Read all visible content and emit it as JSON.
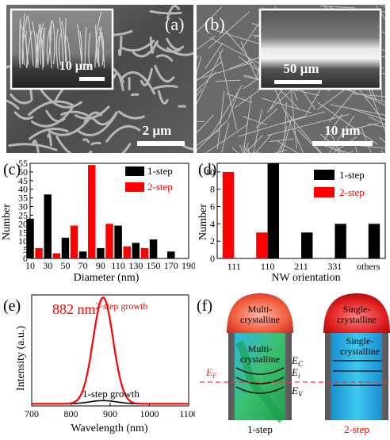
{
  "panel_a": {
    "label": "(a)",
    "inset_scale": "10 µm",
    "main_scale": "2 µm"
  },
  "panel_b": {
    "label": "(b)",
    "inset_scale": "50 µm",
    "main_scale": "10 µm"
  },
  "panel_e": {
    "label": "(e)",
    "peak_label": "882 nm",
    "annot_2step": "2-step growth",
    "annot_1step": "1-step growth",
    "colors": {
      "two_step": "#ff0000",
      "one_step": "#000000"
    }
  },
  "panel_f": {
    "label": "(f)",
    "left_cap": [
      "Multi-",
      "crystalline"
    ],
    "left_body": [
      "Multi-",
      "crystalline"
    ],
    "right_cap": [
      "Single-",
      "crystalline"
    ],
    "right_body": [
      "Single-",
      "crystalline"
    ],
    "ef": "E",
    "ef_sub": "F",
    "ec": "E",
    "ec_sub": "C",
    "ei": "E",
    "ei_sub": "i",
    "ev": "E",
    "ev_sub": "V",
    "left_caption": "1-step",
    "right_caption": "2-step"
  },
  "chart_data": [
    {
      "label": "(c)",
      "type": "bar",
      "xlabel": "Diameter (nm)",
      "ylabel": "Number",
      "categories": [
        "10",
        "30",
        "50",
        "70",
        "90",
        "110",
        "130",
        "150",
        "170",
        "190"
      ],
      "ylim": [
        0,
        55
      ],
      "yticks": [
        0,
        5,
        10,
        15,
        20,
        25,
        30,
        35,
        40,
        45,
        50,
        55
      ],
      "legend_position": "top-right",
      "series": [
        {
          "name": "1-step",
          "color": "#000000",
          "points": [
            [
              10,
              23
            ],
            [
              30,
              37
            ],
            [
              50,
              12
            ],
            [
              70,
              4
            ],
            [
              90,
              6
            ],
            [
              110,
              19
            ],
            [
              130,
              9
            ],
            [
              150,
              11
            ],
            [
              170,
              4
            ]
          ]
        },
        {
          "name": "2-step",
          "color": "#ff0000",
          "points": [
            [
              20,
              6
            ],
            [
              40,
              3
            ],
            [
              60,
              19
            ],
            [
              80,
              54
            ],
            [
              100,
              20
            ],
            [
              120,
              7
            ],
            [
              140,
              6
            ]
          ]
        }
      ]
    },
    {
      "label": "(d)",
      "type": "bar",
      "xlabel": "NW orientation",
      "ylabel": "Number",
      "categories": [
        "111",
        "110",
        "211",
        "331",
        "others"
      ],
      "ylim": [
        0,
        11
      ],
      "yticks": [
        0,
        2,
        4,
        6,
        8,
        10
      ],
      "legend_position": "top-right",
      "series": [
        {
          "name": "1-step",
          "color": "#000000",
          "values": [
            0,
            11,
            3,
            4,
            4
          ]
        },
        {
          "name": "2-step",
          "color": "#ff0000",
          "values": [
            10,
            3,
            0,
            0,
            0
          ]
        }
      ]
    },
    {
      "label": "(e)",
      "type": "line",
      "xlabel": "Wavelength (nm)",
      "ylabel": "Intensity (a.u.)",
      "xlim": [
        700,
        1100
      ],
      "xticks": [
        700,
        800,
        900,
        1000,
        1100
      ],
      "series": [
        {
          "name": "2-step growth",
          "color": "#ff0000",
          "peak": 882,
          "fwhm": 60,
          "amplitude": 1.0,
          "baseline": 0.02
        },
        {
          "name": "1-step growth",
          "color": "#000000",
          "peak": 882,
          "fwhm": 80,
          "amplitude": 0.03,
          "baseline": 0.02
        }
      ]
    }
  ]
}
